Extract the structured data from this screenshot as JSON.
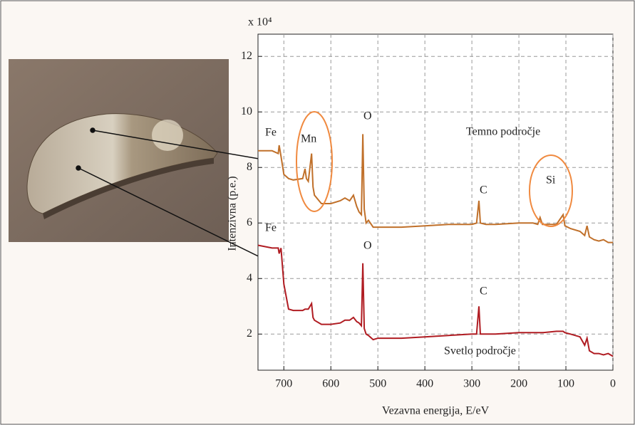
{
  "chart_data": {
    "type": "line",
    "y_label": "Intenzivna (p.e.)",
    "x_label": "Vezavna energija, E/eV",
    "y_multiplier": "x 10⁴",
    "x": [
      755,
      725,
      712,
      710,
      706,
      700,
      690,
      680,
      660,
      655,
      652,
      648,
      641,
      638,
      635,
      620,
      600,
      580,
      570,
      560,
      552,
      545,
      540,
      535,
      532,
      529,
      525,
      520,
      510,
      500,
      450,
      400,
      350,
      300,
      290,
      285,
      282,
      270,
      250,
      200,
      170,
      160,
      155,
      150,
      120,
      106,
      102,
      90,
      70,
      60,
      55,
      50,
      40,
      30,
      20,
      10,
      0
    ],
    "series": [
      {
        "name": "Temno področje",
        "color": "#c0702a",
        "values": [
          8.6,
          8.6,
          8.5,
          8.8,
          8.4,
          7.75,
          7.6,
          7.55,
          7.6,
          7.95,
          7.6,
          7.5,
          8.5,
          7.3,
          7.0,
          6.7,
          6.7,
          6.8,
          6.9,
          6.8,
          7.0,
          6.6,
          6.4,
          6.3,
          9.2,
          6.5,
          6.0,
          6.1,
          5.85,
          5.85,
          5.85,
          5.9,
          5.95,
          5.95,
          6.0,
          6.8,
          6.0,
          5.95,
          5.95,
          6.0,
          6.0,
          5.95,
          6.2,
          5.95,
          5.95,
          6.3,
          5.9,
          5.8,
          5.7,
          5.55,
          5.9,
          5.5,
          5.4,
          5.35,
          5.4,
          5.3,
          5.3
        ]
      },
      {
        "name": "Svetlo področje",
        "color": "#b01c22",
        "values": [
          5.2,
          5.1,
          5.1,
          4.9,
          5.1,
          3.8,
          2.9,
          2.85,
          2.85,
          2.9,
          2.9,
          2.9,
          3.1,
          2.6,
          2.5,
          2.35,
          2.35,
          2.4,
          2.5,
          2.5,
          2.6,
          2.45,
          2.4,
          2.3,
          4.55,
          2.2,
          2.0,
          1.95,
          1.8,
          1.85,
          1.85,
          1.9,
          1.95,
          2.0,
          2.0,
          3.0,
          2.0,
          2.0,
          2.0,
          2.05,
          2.05,
          2.05,
          2.05,
          2.05,
          2.1,
          2.1,
          2.05,
          2.0,
          1.9,
          1.6,
          1.85,
          1.4,
          1.3,
          1.3,
          1.25,
          1.3,
          1.2
        ]
      }
    ],
    "annotations": [
      "Fe",
      "Mn",
      "O",
      "C",
      "Si",
      "Fe",
      "O",
      "C"
    ],
    "xlim": [
      755,
      0
    ],
    "xticks": [
      700,
      600,
      500,
      400,
      300,
      200,
      100,
      0
    ],
    "ylim": [
      0.7,
      12.8
    ],
    "yticks": [
      2,
      4,
      6,
      8,
      10,
      12
    ],
    "grid": true
  }
}
